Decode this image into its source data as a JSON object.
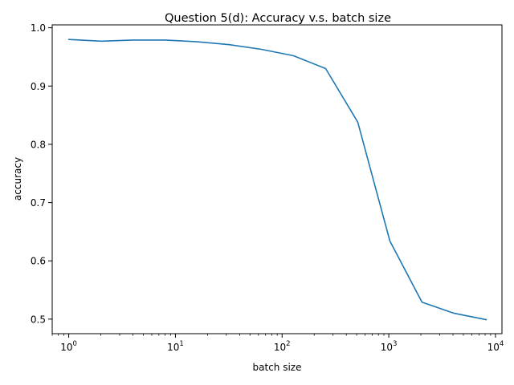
{
  "chart_data": {
    "type": "line",
    "title": "Question 5(d): Accuracy v.s. batch size",
    "xlabel": "batch size",
    "ylabel": "accuracy",
    "xscale": "log",
    "xlim": [
      0.7,
      11500
    ],
    "ylim": [
      0.475,
      1.005
    ],
    "grid": false,
    "x_ticks": [
      {
        "value": 1,
        "base": "10",
        "exp": "0"
      },
      {
        "value": 10,
        "base": "10",
        "exp": "1"
      },
      {
        "value": 100,
        "base": "10",
        "exp": "2"
      },
      {
        "value": 1000,
        "base": "10",
        "exp": "3"
      },
      {
        "value": 10000,
        "base": "10",
        "exp": "4"
      }
    ],
    "y_ticks": [
      {
        "value": 0.5,
        "label": "0.5"
      },
      {
        "value": 0.6,
        "label": "0.6"
      },
      {
        "value": 0.7,
        "label": "0.7"
      },
      {
        "value": 0.8,
        "label": "0.8"
      },
      {
        "value": 0.9,
        "label": "0.9"
      },
      {
        "value": 1.0,
        "label": "1.0"
      }
    ],
    "series": [
      {
        "color": "#1f77b4",
        "x": [
          1,
          2,
          4,
          8,
          16,
          32,
          64,
          128,
          256,
          512,
          1024,
          2048,
          4096,
          8192
        ],
        "y": [
          0.98,
          0.977,
          0.979,
          0.979,
          0.976,
          0.971,
          0.963,
          0.952,
          0.93,
          0.838,
          0.634,
          0.529,
          0.51,
          0.499
        ]
      }
    ]
  }
}
